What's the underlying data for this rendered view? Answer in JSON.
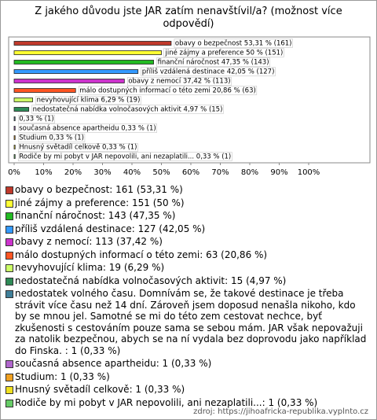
{
  "chart_data": {
    "type": "bar",
    "orientation": "horizontal",
    "title": "Z jakého důvodu jste JAR zatím nenavštívil/a? (možnost více odpovědí)",
    "categories": [
      "obavy o bezpečnost",
      "jiné zájmy a preference",
      "finanční náročnost",
      "příliš vzdálená destinace",
      "obavy z nemocí",
      "málo dostupných informací o této zemi",
      "nevyhovující klima",
      "nedostatečná nabídka volnočasových aktivit",
      "nedostatek volného času",
      "současná absence apartheidu",
      "Studium",
      "Hnusný světadíl celkově",
      "Rodiče by mi pobyt v JAR nepovolili, ani nezaplatili..."
    ],
    "values": [
      53.31,
      50,
      47.35,
      42.05,
      37.42,
      20.86,
      6.29,
      4.97,
      0.33,
      0.33,
      0.33,
      0.33,
      0.33
    ],
    "value_labels": [
      "obavy o bezpečnost 53,31 % (161)",
      "jiné zájmy a preference 50 % (151)",
      "finanční náročnost 47,35 % (143)",
      "příliš vzdálená destinace 42,05 % (127)",
      "obavy z nemocí 37,42 % (113)",
      "málo dostupných informací o této zemi 20,86 % (63)",
      "nevyhovující klima 6,29 % (19)",
      "nedostatečná nabídka volnočasových aktivit 4,97 % (15)",
      "0,33 % (1)",
      "současná absence apartheidu 0,33 % (1)",
      "Studium 0,33 % (1)",
      "Hnusný světadíl celkově 0,33 % (1)",
      "Rodiče by mi pobyt v JAR nepovolili, ani nezaplatili... 0,33 % (1)"
    ],
    "colors": [
      "#c0392b",
      "#ffff33",
      "#22bb22",
      "#3399ff",
      "#cc33cc",
      "#ff5522",
      "#ccff66",
      "#2e8b57",
      "#3f7f99",
      "#b066cc",
      "#f0a020",
      "#f0e020",
      "#66cc66"
    ],
    "legend": [
      "obavy o bezpečnost: 161 (53,31 %)",
      "jiné zájmy a preference: 151 (50 %)",
      "finanční náročnost: 143 (47,35 %)",
      "příliš vzdálená destinace: 127 (42,05 %)",
      "obavy z nemocí: 113 (37,42 %)",
      "málo dostupných informací o této zemi: 63 (20,86 %)",
      "nevyhovující klima: 19 (6,29 %)",
      "nedostatečná nabídka volnočasových aktivit: 15 (4,97 %)",
      "nedostatek volného času. Domnívám se, že takové destinace je třeba strávit více času než 14 dní. Zároveň jsem doposud nenašla nikoho, kdo by se mnou jel. Samotné se mi do této zem cestovat nechce, byť zkušenosti s cestováním pouze sama se sebou mám. JAR však nepovažuji za natolik bezpečnou, abych se na ní vydala bez doprovodu jako například do Finska. : 1 (0,33 %)",
      "současná absence apartheidu: 1 (0,33 %)",
      "Studium: 1 (0,33 %)",
      "Hnusný světadíl celkově: 1 (0,33 %)",
      "Rodiče by mi pobyt v JAR nepovolili, ani nezaplatili...: 1 (0,33 %)"
    ],
    "xlim": [
      0,
      100
    ],
    "xticks": [
      {
        "value": 0,
        "label": "0%"
      },
      {
        "value": 10,
        "label": "10%"
      },
      {
        "value": 20,
        "label": "20%"
      },
      {
        "value": 30,
        "label": "30%"
      },
      {
        "value": 40,
        "label": "40%"
      },
      {
        "value": 50,
        "label": "50%"
      },
      {
        "value": 60,
        "label": "60%"
      },
      {
        "value": 70,
        "label": "70%"
      },
      {
        "value": 80,
        "label": "80%"
      },
      {
        "value": 90,
        "label": "90%"
      },
      {
        "value": 100,
        "label": "100%"
      }
    ],
    "source": "zdroj: https://jihoafricka-republika.vyplnto.cz"
  }
}
